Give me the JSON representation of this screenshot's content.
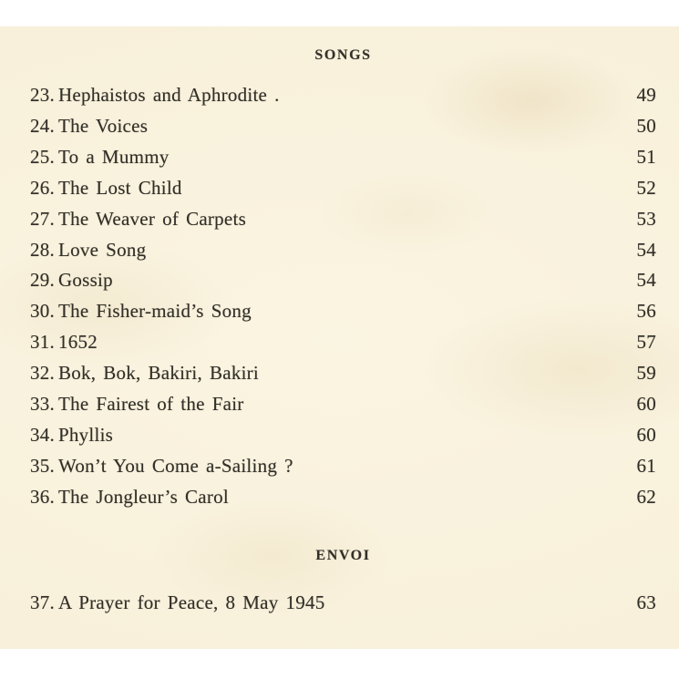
{
  "colors": {
    "paper": "#f8f0da",
    "ink": "#322f28",
    "background": "#ffffff"
  },
  "toc": {
    "sections": [
      {
        "heading": "SONGS",
        "entries": [
          {
            "num": "23.",
            "title": "Hephaistos and Aphrodite .",
            "page": "49"
          },
          {
            "num": "24.",
            "title": "The Voices",
            "page": "50"
          },
          {
            "num": "25.",
            "title": "To a Mummy",
            "page": "51"
          },
          {
            "num": "26.",
            "title": "The Lost Child",
            "page": "52"
          },
          {
            "num": "27.",
            "title": "The Weaver of Carpets",
            "page": "53"
          },
          {
            "num": "28.",
            "title": "Love Song",
            "page": "54"
          },
          {
            "num": "29.",
            "title": "Gossip",
            "page": "54"
          },
          {
            "num": "30.",
            "title": "The Fisher-maid’s Song",
            "page": "56"
          },
          {
            "num": "31.",
            "title": "1652",
            "page": "57"
          },
          {
            "num": "32.",
            "title": "Bok, Bok, Bakiri, Bakiri",
            "page": "59"
          },
          {
            "num": "33.",
            "title": "The Fairest of the Fair",
            "page": "60"
          },
          {
            "num": "34.",
            "title": "Phyllis",
            "page": "60"
          },
          {
            "num": "35.",
            "title": "Won’t You Come a-Sailing ?",
            "page": "61"
          },
          {
            "num": "36.",
            "title": "The Jongleur’s Carol",
            "page": "62"
          }
        ]
      },
      {
        "heading": "ENVOI",
        "entries": [
          {
            "num": "37.",
            "title": "A Prayer for Peace, 8 May 1945",
            "page": "63"
          }
        ]
      }
    ]
  }
}
